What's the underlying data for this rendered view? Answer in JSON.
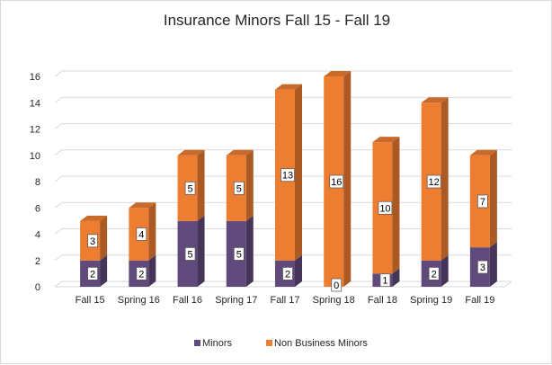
{
  "chart_data": {
    "type": "bar",
    "stacked": true,
    "style": "3d-column",
    "title": "Insurance Minors Fall 15 - Fall 19",
    "categories": [
      "Fall 15",
      "Spring 16",
      "Fall 16",
      "Spring 17",
      "Fall 17",
      "Spring 18",
      "Fall 18",
      "Spring 19",
      "Fall 19"
    ],
    "series": [
      {
        "name": "Minors",
        "color": "#604a7b",
        "values": [
          2,
          2,
          5,
          5,
          2,
          0,
          1,
          2,
          3
        ]
      },
      {
        "name": "Non Business Minors",
        "color": "#ed7d31",
        "values": [
          3,
          4,
          5,
          5,
          13,
          16,
          10,
          12,
          7
        ]
      }
    ],
    "yticks": [
      "0",
      "2",
      "4",
      "6",
      "8",
      "10",
      "12",
      "14",
      "16"
    ],
    "ylim": [
      0,
      16
    ],
    "grid": true,
    "legend_position": "bottom",
    "data_labels": true
  }
}
